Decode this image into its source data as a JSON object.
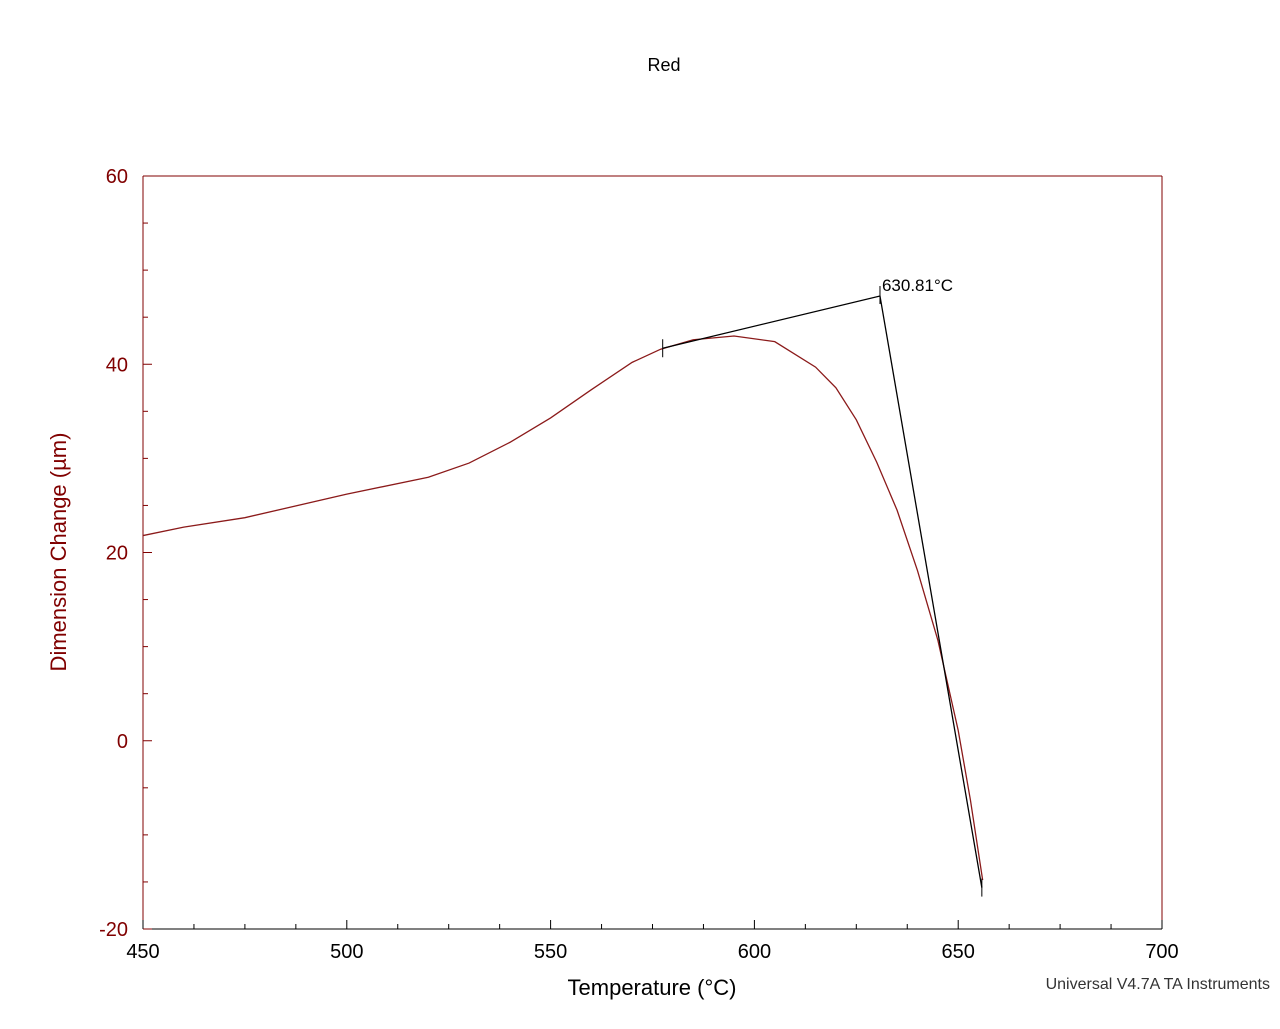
{
  "chart_data": {
    "type": "line",
    "title": "Red",
    "x_label": "Temperature (°C)",
    "y_label": "Dimension Change (µm)",
    "footer": "Universal V4.7A TA Instruments",
    "xlim": [
      450,
      700
    ],
    "xticks": [
      450,
      500,
      550,
      600,
      650,
      700
    ],
    "ylim": [
      -20,
      60
    ],
    "yticks": [
      -20,
      0,
      20,
      40,
      60
    ],
    "axis_color": "#800000",
    "series": [
      {
        "color": "#8b1a1a",
        "x": [
          450,
          460,
          475,
          500,
          520,
          530,
          540,
          550,
          560,
          570,
          577,
          585,
          595,
          605,
          615,
          620,
          625,
          630,
          635,
          640,
          645,
          650,
          653,
          656
        ],
        "values": [
          21.8,
          22.7,
          23.7,
          26.2,
          28.0,
          29.5,
          31.7,
          34.3,
          37.3,
          40.2,
          41.6,
          42.6,
          43.0,
          42.4,
          39.7,
          37.5,
          34.1,
          29.6,
          24.5,
          18.1,
          10.7,
          1.1,
          -6.3,
          -14.8
        ]
      }
    ],
    "tangent": {
      "color": "#000000",
      "x": [
        577.5,
        630.81,
        655.8
      ],
      "values": [
        41.7,
        47.25,
        -15.6
      ]
    },
    "annotation": {
      "x": 630.81,
      "y": 47.25,
      "label": "630.81°C"
    }
  }
}
